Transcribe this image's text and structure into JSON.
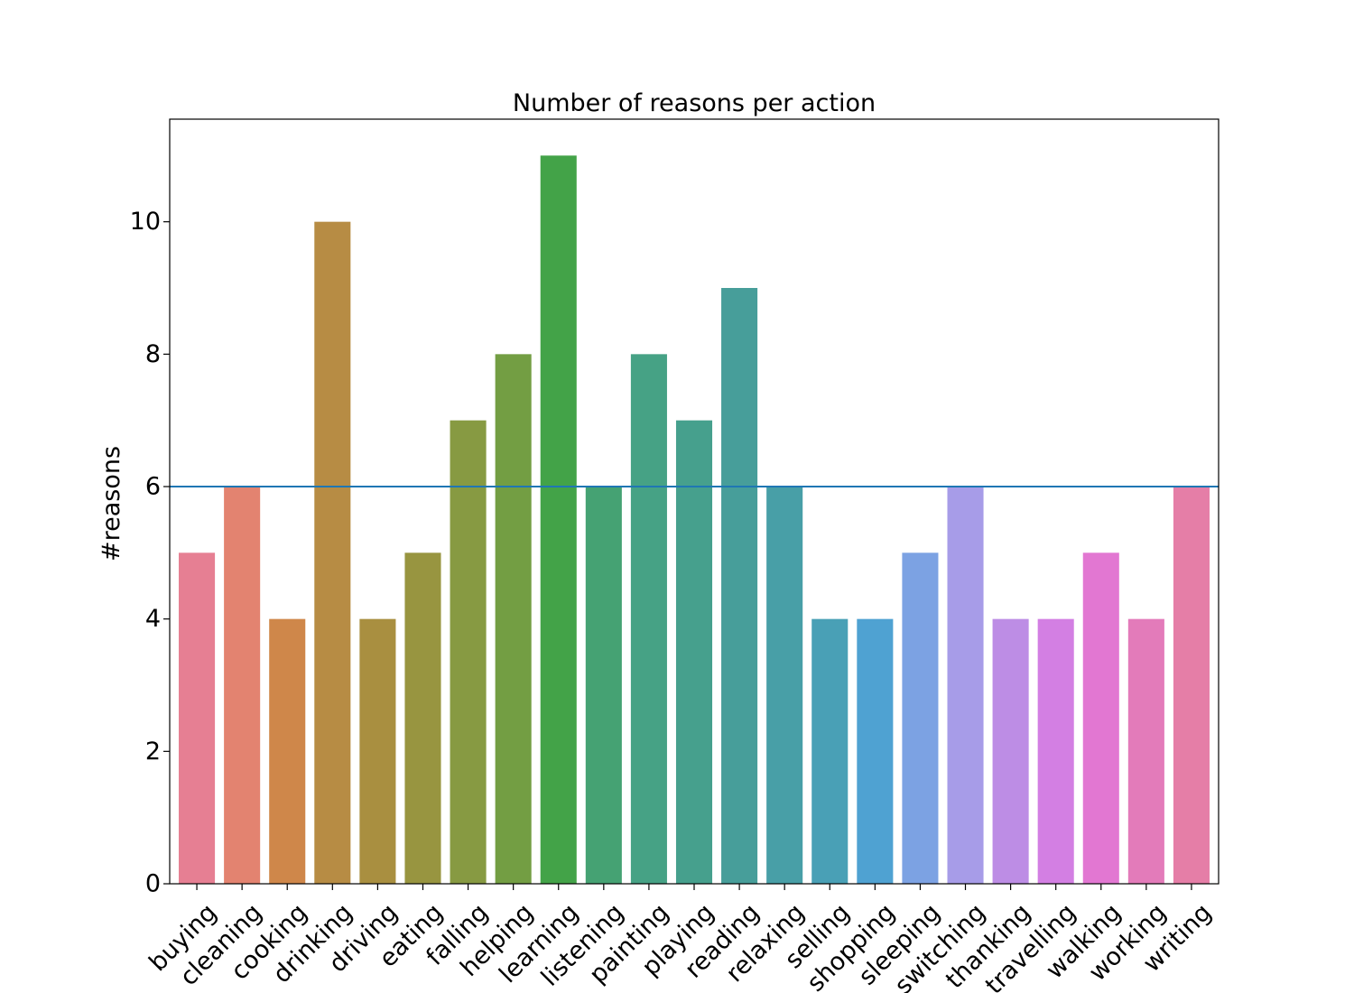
{
  "chart_data": {
    "type": "bar",
    "title": "Number of reasons per action",
    "xlabel": "",
    "ylabel": "#reasons",
    "ylim": [
      0,
      11.55
    ],
    "yticks": [
      0,
      2,
      4,
      6,
      8,
      10
    ],
    "categories": [
      "buying",
      "cleaning",
      "cooking",
      "drinking",
      "driving",
      "eating",
      "falling",
      "helping",
      "learning",
      "listening",
      "painting",
      "playing",
      "reading",
      "relaxing",
      "selling",
      "shopping",
      "sleeping",
      "switching",
      "thanking",
      "travelling",
      "walking",
      "working",
      "writing"
    ],
    "values": [
      5,
      6,
      4,
      10,
      4,
      5,
      7,
      8,
      11,
      6,
      8,
      7,
      9,
      6,
      4,
      4,
      5,
      6,
      4,
      4,
      5,
      4,
      6
    ],
    "colors": [
      "#e67f93",
      "#e38370",
      "#cf874a",
      "#b78c44",
      "#a98f40",
      "#989540",
      "#879a42",
      "#739e43",
      "#43a348",
      "#45a273",
      "#46a285",
      "#46a08d",
      "#479e9a",
      "#489fa7",
      "#49a0b6",
      "#4fa2d2",
      "#7ca2e3",
      "#a79ce8",
      "#bd8de5",
      "#d37fe3",
      "#e277d2",
      "#e37bba",
      "#e57ea7"
    ],
    "reference_line": {
      "y": 6,
      "color": "#1f77b4"
    },
    "grid": false,
    "legend": "none"
  }
}
